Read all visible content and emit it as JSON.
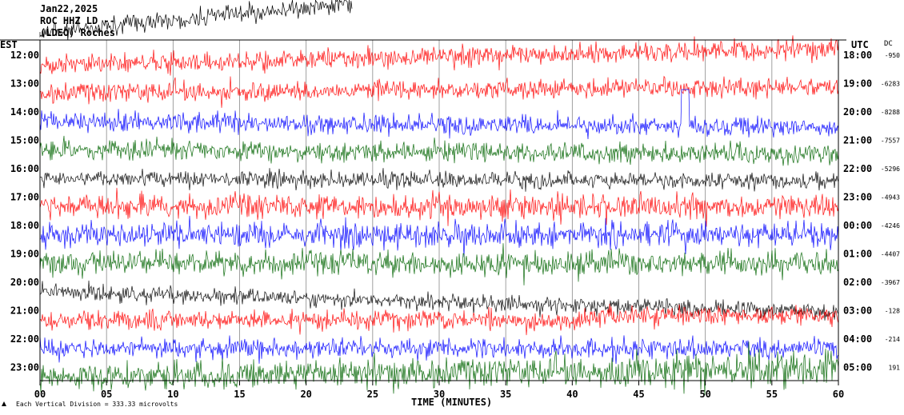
{
  "header": {
    "date": "Jan22,2025",
    "station": "ROC HHZ LD --",
    "network": "(LDEO) Roches"
  },
  "axes": {
    "left_zone": "EST",
    "right_zone": "UTC",
    "dc_header": "DC",
    "xlabel": "TIME (MINUTES)",
    "footer_note": "Each Vertical Division =  333.33 microvolts"
  },
  "chart_data": {
    "type": "line",
    "title": "",
    "xlabel": "TIME (MINUTES)",
    "x_ticks": [
      "00",
      "05",
      "10",
      "15",
      "20",
      "25",
      "30",
      "35",
      "40",
      "45",
      "50",
      "55",
      "60"
    ],
    "xlim": [
      0,
      60
    ],
    "grid": true,
    "trace_colors": [
      "#ff0000",
      "#0000ff",
      "#006400",
      "#000000"
    ],
    "rows": [
      {
        "est": "12:00",
        "utc": "18:00",
        "dc": "-950",
        "color": "#ff0000"
      },
      {
        "est": "13:00",
        "utc": "19:00",
        "dc": "-6283",
        "color": "#ff0000"
      },
      {
        "est": "14:00",
        "utc": "20:00",
        "dc": "-8288",
        "color": "#0000ff"
      },
      {
        "est": "15:00",
        "utc": "21:00",
        "dc": "-7557",
        "color": "#006400"
      },
      {
        "est": "16:00",
        "utc": "22:00",
        "dc": "-5296",
        "color": "#000000"
      },
      {
        "est": "17:00",
        "utc": "23:00",
        "dc": "-4943",
        "color": "#ff0000"
      },
      {
        "est": "18:00",
        "utc": "00:00",
        "dc": "-4246",
        "color": "#0000ff"
      },
      {
        "est": "19:00",
        "utc": "01:00",
        "dc": "-4407",
        "color": "#006400"
      },
      {
        "est": "20:00",
        "utc": "02:00",
        "dc": "-3967",
        "color": "#000000"
      },
      {
        "est": "21:00",
        "utc": "03:00",
        "dc": "-128",
        "color": "#ff0000"
      },
      {
        "est": "22:00",
        "utc": "04:00",
        "dc": "-214",
        "color": "#0000ff"
      },
      {
        "est": "23:00",
        "utc": "05:00",
        "dc": "191",
        "color": "#006400"
      }
    ]
  }
}
